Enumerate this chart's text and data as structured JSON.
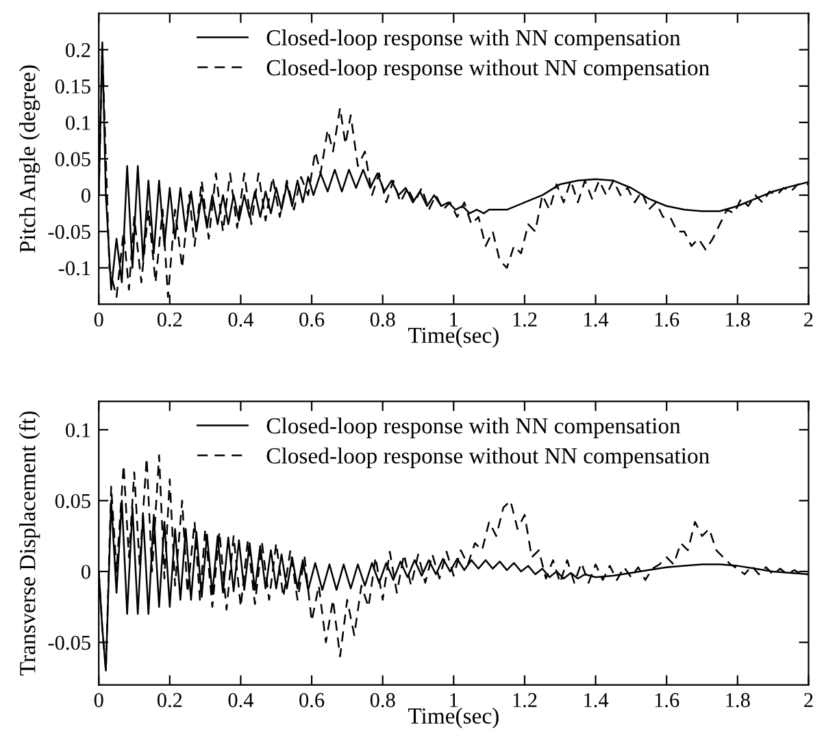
{
  "chart_data": [
    {
      "type": "line",
      "xlabel": "Time(sec)",
      "ylabel": "Pitch Angle (degree)",
      "xlim": [
        0,
        2
      ],
      "ylim": [
        -0.15,
        0.25
      ],
      "xticks": [
        0,
        0.2,
        0.4,
        0.6,
        0.8,
        1,
        1.2,
        1.4,
        1.6,
        1.8,
        2
      ],
      "yticks": [
        -0.1,
        -0.05,
        0,
        0.05,
        0.1,
        0.15,
        0.2
      ],
      "legend": "top",
      "grid": false,
      "series": [
        {
          "name": "Closed-loop response with NN compensation",
          "color": "#000000",
          "line_style": "solid",
          "x": [
            0,
            0.01,
            0.02,
            0.035,
            0.05,
            0.065,
            0.08,
            0.095,
            0.11,
            0.125,
            0.14,
            0.155,
            0.17,
            0.185,
            0.2,
            0.215,
            0.23,
            0.245,
            0.26,
            0.275,
            0.29,
            0.305,
            0.32,
            0.335,
            0.35,
            0.365,
            0.38,
            0.395,
            0.41,
            0.425,
            0.44,
            0.455,
            0.47,
            0.485,
            0.5,
            0.515,
            0.53,
            0.545,
            0.56,
            0.575,
            0.59,
            0.605,
            0.625,
            0.645,
            0.665,
            0.685,
            0.705,
            0.725,
            0.745,
            0.765,
            0.785,
            0.805,
            0.825,
            0.845,
            0.865,
            0.885,
            0.905,
            0.925,
            0.945,
            0.965,
            0.985,
            1.005,
            1.025,
            1.045,
            1.065,
            1.085,
            1.1,
            1.15,
            1.2,
            1.25,
            1.3,
            1.35,
            1.4,
            1.45,
            1.5,
            1.55,
            1.6,
            1.65,
            1.7,
            1.75,
            1.8,
            1.85,
            1.9,
            1.95,
            2
          ],
          "values": [
            0,
            0.21,
            0.0,
            -0.13,
            -0.06,
            -0.12,
            0.04,
            -0.1,
            0.04,
            -0.09,
            0.02,
            -0.08,
            0.02,
            -0.07,
            0.01,
            -0.06,
            0.01,
            -0.05,
            0.005,
            -0.05,
            0.0,
            -0.045,
            0.0,
            -0.04,
            0.0,
            -0.04,
            0.0,
            -0.035,
            0.0,
            -0.03,
            0.005,
            -0.03,
            0.005,
            -0.025,
            0.01,
            -0.02,
            0.015,
            -0.015,
            0.02,
            -0.01,
            0.025,
            0.0,
            0.03,
            0.005,
            0.035,
            0.005,
            0.035,
            0.01,
            0.035,
            0.01,
            0.03,
            0.005,
            0.02,
            0.0,
            0.01,
            -0.01,
            0.005,
            -0.015,
            0.0,
            -0.015,
            -0.01,
            -0.02,
            -0.015,
            -0.025,
            -0.02,
            -0.025,
            -0.02,
            -0.02,
            -0.01,
            0.0,
            0.015,
            0.02,
            0.022,
            0.02,
            0.01,
            -0.005,
            -0.015,
            -0.02,
            -0.022,
            -0.022,
            -0.015,
            -0.005,
            0.005,
            0.012,
            0.018
          ]
        },
        {
          "name": "Closed-loop response without NN compensation",
          "color": "#000000",
          "line_style": "dashed",
          "x": [
            0,
            0.01,
            0.03,
            0.05,
            0.07,
            0.085,
            0.1,
            0.12,
            0.14,
            0.16,
            0.18,
            0.195,
            0.215,
            0.235,
            0.255,
            0.27,
            0.29,
            0.31,
            0.33,
            0.35,
            0.37,
            0.39,
            0.41,
            0.43,
            0.45,
            0.47,
            0.49,
            0.51,
            0.53,
            0.55,
            0.57,
            0.59,
            0.61,
            0.625,
            0.645,
            0.66,
            0.68,
            0.695,
            0.71,
            0.73,
            0.75,
            0.77,
            0.79,
            0.81,
            0.83,
            0.85,
            0.87,
            0.89,
            0.91,
            0.93,
            0.95,
            0.97,
            0.99,
            1.01,
            1.03,
            1.05,
            1.07,
            1.09,
            1.11,
            1.13,
            1.15,
            1.17,
            1.19,
            1.21,
            1.23,
            1.25,
            1.27,
            1.29,
            1.31,
            1.33,
            1.35,
            1.37,
            1.39,
            1.41,
            1.43,
            1.45,
            1.47,
            1.49,
            1.51,
            1.53,
            1.55,
            1.57,
            1.59,
            1.61,
            1.63,
            1.65,
            1.67,
            1.69,
            1.71,
            1.73,
            1.75,
            1.77,
            1.79,
            1.81,
            1.83,
            1.85,
            1.87,
            1.89,
            1.91,
            1.93,
            1.95,
            1.97,
            2
          ],
          "values": [
            0,
            0.2,
            -0.1,
            -0.14,
            -0.05,
            -0.13,
            -0.03,
            -0.12,
            -0.02,
            -0.12,
            -0.02,
            -0.14,
            -0.02,
            -0.1,
            0.0,
            -0.07,
            0.02,
            -0.06,
            0.03,
            -0.05,
            0.03,
            -0.045,
            0.03,
            -0.04,
            0.03,
            -0.035,
            0.025,
            -0.03,
            0.02,
            -0.02,
            0.025,
            0.0,
            0.06,
            0.03,
            0.09,
            0.06,
            0.12,
            0.07,
            0.11,
            0.04,
            0.06,
            0.0,
            0.03,
            -0.01,
            0.02,
            -0.01,
            0.01,
            -0.01,
            0.01,
            -0.02,
            0.0,
            -0.02,
            -0.01,
            -0.03,
            -0.01,
            -0.04,
            -0.03,
            -0.07,
            -0.05,
            -0.09,
            -0.1,
            -0.07,
            -0.08,
            -0.04,
            -0.05,
            0.0,
            -0.02,
            0.015,
            -0.01,
            0.02,
            -0.01,
            0.02,
            -0.005,
            0.02,
            0.0,
            0.02,
            0.0,
            0.01,
            -0.01,
            0.005,
            -0.02,
            -0.01,
            -0.03,
            -0.03,
            -0.05,
            -0.05,
            -0.07,
            -0.06,
            -0.075,
            -0.06,
            -0.04,
            -0.02,
            -0.025,
            -0.005,
            -0.015,
            0.0,
            -0.01,
            0.005,
            0.0,
            0.01,
            0.005,
            0.015,
            0.015
          ]
        }
      ]
    },
    {
      "type": "line",
      "xlabel": "Time(sec)",
      "ylabel": "Transverse Displacement (ft)",
      "xlim": [
        0,
        2
      ],
      "ylim": [
        -0.08,
        0.12
      ],
      "xticks": [
        0,
        0.2,
        0.4,
        0.6,
        0.8,
        1,
        1.2,
        1.4,
        1.6,
        1.8,
        2
      ],
      "yticks": [
        -0.05,
        0,
        0.05,
        0.1
      ],
      "legend": "top",
      "grid": false,
      "series": [
        {
          "name": "Closed-loop response with NN compensation",
          "color": "#000000",
          "line_style": "solid",
          "x": [
            0,
            0.01,
            0.02,
            0.035,
            0.05,
            0.065,
            0.08,
            0.095,
            0.11,
            0.125,
            0.14,
            0.155,
            0.17,
            0.185,
            0.2,
            0.215,
            0.23,
            0.245,
            0.26,
            0.275,
            0.29,
            0.305,
            0.32,
            0.335,
            0.35,
            0.365,
            0.38,
            0.395,
            0.41,
            0.425,
            0.44,
            0.455,
            0.47,
            0.485,
            0.5,
            0.515,
            0.53,
            0.545,
            0.56,
            0.575,
            0.59,
            0.61,
            0.63,
            0.65,
            0.67,
            0.69,
            0.71,
            0.73,
            0.75,
            0.77,
            0.79,
            0.81,
            0.83,
            0.85,
            0.87,
            0.89,
            0.91,
            0.93,
            0.95,
            0.97,
            0.99,
            1.01,
            1.03,
            1.05,
            1.07,
            1.09,
            1.11,
            1.13,
            1.15,
            1.17,
            1.19,
            1.21,
            1.23,
            1.25,
            1.27,
            1.29,
            1.31,
            1.33,
            1.35,
            1.37,
            1.4,
            1.45,
            1.5,
            1.55,
            1.6,
            1.65,
            1.7,
            1.75,
            1.8,
            1.85,
            1.9,
            1.95,
            2
          ],
          "values": [
            0,
            -0.04,
            -0.07,
            0.05,
            -0.015,
            0.05,
            -0.03,
            0.045,
            -0.03,
            0.04,
            -0.03,
            0.04,
            -0.025,
            0.035,
            -0.025,
            0.03,
            -0.02,
            0.03,
            -0.02,
            0.028,
            -0.018,
            0.026,
            -0.016,
            0.025,
            -0.015,
            0.024,
            -0.014,
            0.022,
            -0.013,
            0.02,
            -0.013,
            0.018,
            -0.012,
            0.015,
            -0.012,
            0.012,
            -0.012,
            0.01,
            -0.012,
            0.008,
            -0.013,
            0.006,
            -0.013,
            0.005,
            -0.013,
            0.005,
            -0.012,
            0.005,
            -0.01,
            0.006,
            -0.008,
            0.006,
            -0.006,
            0.007,
            -0.004,
            0.008,
            -0.003,
            0.008,
            -0.002,
            0.009,
            0.0,
            0.009,
            0.001,
            0.008,
            0.002,
            0.008,
            0.002,
            0.007,
            0.001,
            0.006,
            0.0,
            0.004,
            -0.002,
            0.002,
            -0.004,
            0.0,
            -0.005,
            -0.001,
            -0.005,
            -0.002,
            -0.004,
            -0.003,
            -0.001,
            0.001,
            0.003,
            0.004,
            0.005,
            0.005,
            0.004,
            0.002,
            0.0,
            -0.001,
            -0.002
          ]
        },
        {
          "name": "Closed-loop response without NN compensation",
          "color": "#000000",
          "line_style": "dashed",
          "x": [
            0,
            0.01,
            0.02,
            0.035,
            0.05,
            0.07,
            0.085,
            0.1,
            0.115,
            0.135,
            0.15,
            0.17,
            0.185,
            0.2,
            0.215,
            0.235,
            0.25,
            0.27,
            0.285,
            0.3,
            0.32,
            0.34,
            0.36,
            0.38,
            0.4,
            0.42,
            0.44,
            0.46,
            0.48,
            0.5,
            0.52,
            0.54,
            0.56,
            0.58,
            0.6,
            0.62,
            0.64,
            0.66,
            0.68,
            0.7,
            0.72,
            0.74,
            0.76,
            0.78,
            0.8,
            0.82,
            0.84,
            0.86,
            0.88,
            0.9,
            0.92,
            0.94,
            0.96,
            0.98,
            1.0,
            1.02,
            1.04,
            1.06,
            1.08,
            1.1,
            1.12,
            1.14,
            1.16,
            1.18,
            1.2,
            1.22,
            1.24,
            1.26,
            1.28,
            1.3,
            1.32,
            1.34,
            1.36,
            1.38,
            1.4,
            1.42,
            1.44,
            1.46,
            1.48,
            1.5,
            1.52,
            1.54,
            1.56,
            1.58,
            1.6,
            1.62,
            1.64,
            1.66,
            1.68,
            1.7,
            1.72,
            1.74,
            1.76,
            1.78,
            1.8,
            1.82,
            1.84,
            1.86,
            1.88,
            1.9,
            1.92,
            1.94,
            1.96,
            1.98,
            2
          ],
          "values": [
            0,
            -0.04,
            -0.07,
            0.06,
            0.0,
            0.075,
            0.01,
            0.07,
            0.005,
            0.08,
            0.0,
            0.082,
            -0.005,
            0.065,
            -0.01,
            0.05,
            -0.015,
            0.035,
            -0.02,
            0.03,
            -0.025,
            0.028,
            -0.027,
            0.025,
            -0.025,
            0.022,
            -0.023,
            0.02,
            -0.02,
            0.02,
            -0.018,
            0.015,
            -0.02,
            0.01,
            -0.035,
            -0.01,
            -0.05,
            -0.02,
            -0.06,
            -0.02,
            -0.045,
            -0.01,
            -0.025,
            0.01,
            -0.02,
            0.014,
            -0.015,
            0.012,
            -0.01,
            0.012,
            -0.008,
            0.012,
            -0.005,
            0.014,
            -0.003,
            0.015,
            0.005,
            0.02,
            0.015,
            0.035,
            0.025,
            0.045,
            0.05,
            0.03,
            0.04,
            0.01,
            0.015,
            -0.005,
            0.008,
            -0.008,
            0.008,
            -0.008,
            0.006,
            -0.008,
            0.005,
            -0.006,
            0.004,
            -0.006,
            0.003,
            -0.004,
            0.003,
            -0.006,
            0.002,
            0.005,
            0.01,
            0.005,
            0.02,
            0.015,
            0.035,
            0.025,
            0.03,
            0.015,
            0.01,
            0.005,
            0.002,
            -0.002,
            0.004,
            -0.002,
            0.003,
            -0.002,
            0.002,
            -0.002,
            0.001,
            -0.002,
            -0.002
          ]
        }
      ]
    }
  ]
}
